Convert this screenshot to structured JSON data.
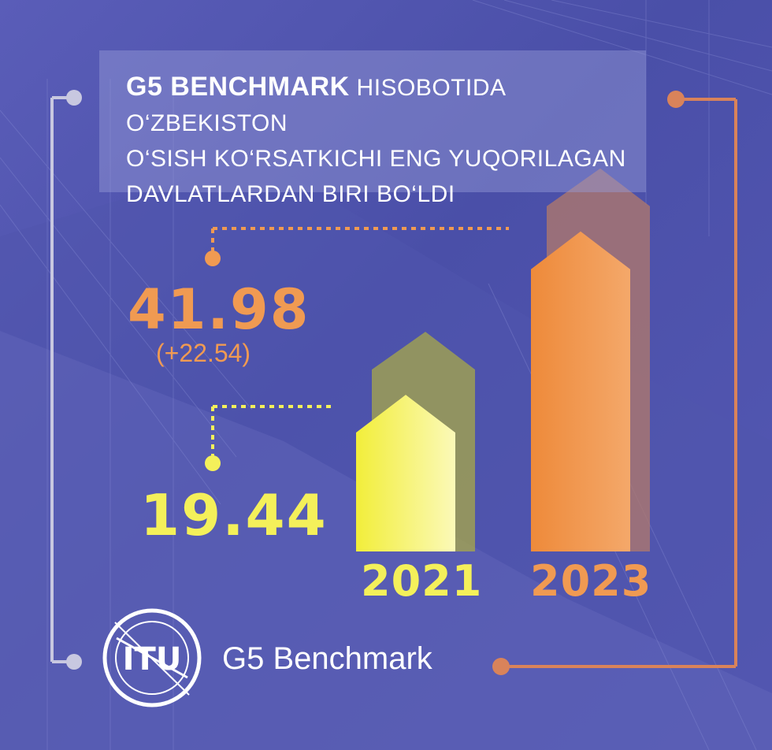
{
  "title": {
    "bold": "G5 BENCHMARK",
    "line1_rest": "HISOBOTIDA O‘ZBEKISTON",
    "line2": "O‘SISH KO‘RSATKICHI ENG YUQORILAGAN",
    "line3": "DAVLATLARDAN BIRI BO‘LDI"
  },
  "values": {
    "value_2023": "41.98",
    "delta_2023": "(+22.54)",
    "value_2021": "19.44"
  },
  "years": {
    "y2021": "2021",
    "y2023": "2023"
  },
  "footer": {
    "logo_text": "ITU",
    "label": "G5 Benchmark"
  },
  "colors": {
    "yellow": "#f4f05a",
    "orange": "#f09a52",
    "background": "#4a4fa8"
  },
  "chart_data": {
    "type": "bar",
    "categories": [
      "2021",
      "2023"
    ],
    "values": [
      19.44,
      41.98
    ],
    "annotations": [
      "19.44",
      "41.98",
      "(+22.54)"
    ],
    "title": "G5 BENCHMARK HISOBOTIDA O‘ZBEKISTON O‘SISH KO‘RSATKICHI ENG YUQORILAGAN DAVLATLARDAN BIRI BO‘LDI",
    "xlabel": "",
    "ylabel": ""
  }
}
